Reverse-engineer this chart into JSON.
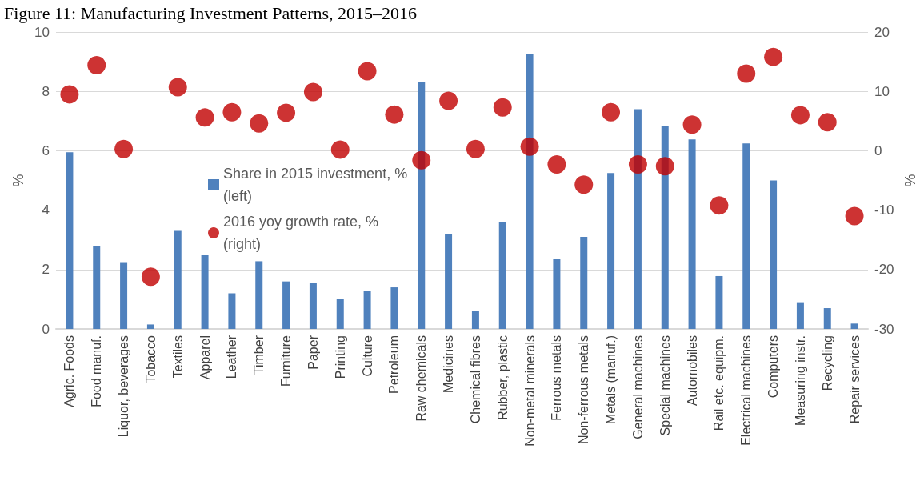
{
  "chart_data": {
    "type": "bar",
    "title": "Figure 11: Manufacturing Investment Patterns, 2015–2016",
    "ylabel": "%",
    "y2label": "%",
    "categories": [
      "Agric. Foods",
      "Food manuf.",
      "Liquor, beverages",
      "Tobacco",
      "Textiles",
      "Apparel",
      "Leather",
      "Timber",
      "Furniture",
      "Paper",
      "Printing",
      "Culture",
      "Petroleum",
      "Raw chemicals",
      "Medicines",
      "Chemical fibres",
      "Rubber, plastic",
      "Non-metal minerals",
      "Ferrous metals",
      "Non-ferrous metals",
      "Metals (manuf.)",
      "General machines",
      "Special machines",
      "Automobiles",
      "Rail etc. equipm.",
      "Electrical machines",
      "Computers",
      "Measuring instr.",
      "Recycling",
      "Repair services"
    ],
    "series": [
      {
        "name": "Share in 2015 investment, % (left)",
        "color": "#4f81bd",
        "values": [
          5.95,
          2.8,
          2.25,
          0.15,
          3.3,
          2.5,
          1.2,
          2.28,
          1.6,
          1.55,
          1.0,
          1.28,
          1.4,
          8.3,
          3.2,
          0.6,
          3.6,
          9.25,
          2.35,
          3.1,
          5.25,
          7.4,
          6.83,
          6.38,
          1.78,
          6.25,
          5.0,
          0.9,
          0.7,
          0.18
        ]
      },
      {
        "name": "2016 yoy growth rate, % (right)",
        "type": "scatter",
        "axis": "y2",
        "color": "#c00000",
        "values": [
          9.5,
          14.4,
          0.3,
          -21.2,
          10.7,
          5.6,
          6.5,
          4.6,
          6.4,
          9.9,
          0.2,
          13.4,
          6.1,
          -1.6,
          8.4,
          0.3,
          7.3,
          0.7,
          -2.3,
          -5.7,
          6.5,
          -2.3,
          -2.6,
          4.4,
          -9.2,
          13.0,
          15.8,
          6.0,
          4.8,
          -11.0
        ]
      }
    ],
    "ylim": [
      0,
      10
    ],
    "yticks": [
      0,
      2,
      4,
      6,
      8,
      10
    ],
    "y2lim": [
      -30,
      20
    ],
    "y2ticks": [
      -30,
      -20,
      -10,
      0,
      10,
      20
    ],
    "grid": "y",
    "legend": "left",
    "marker": "circle"
  }
}
